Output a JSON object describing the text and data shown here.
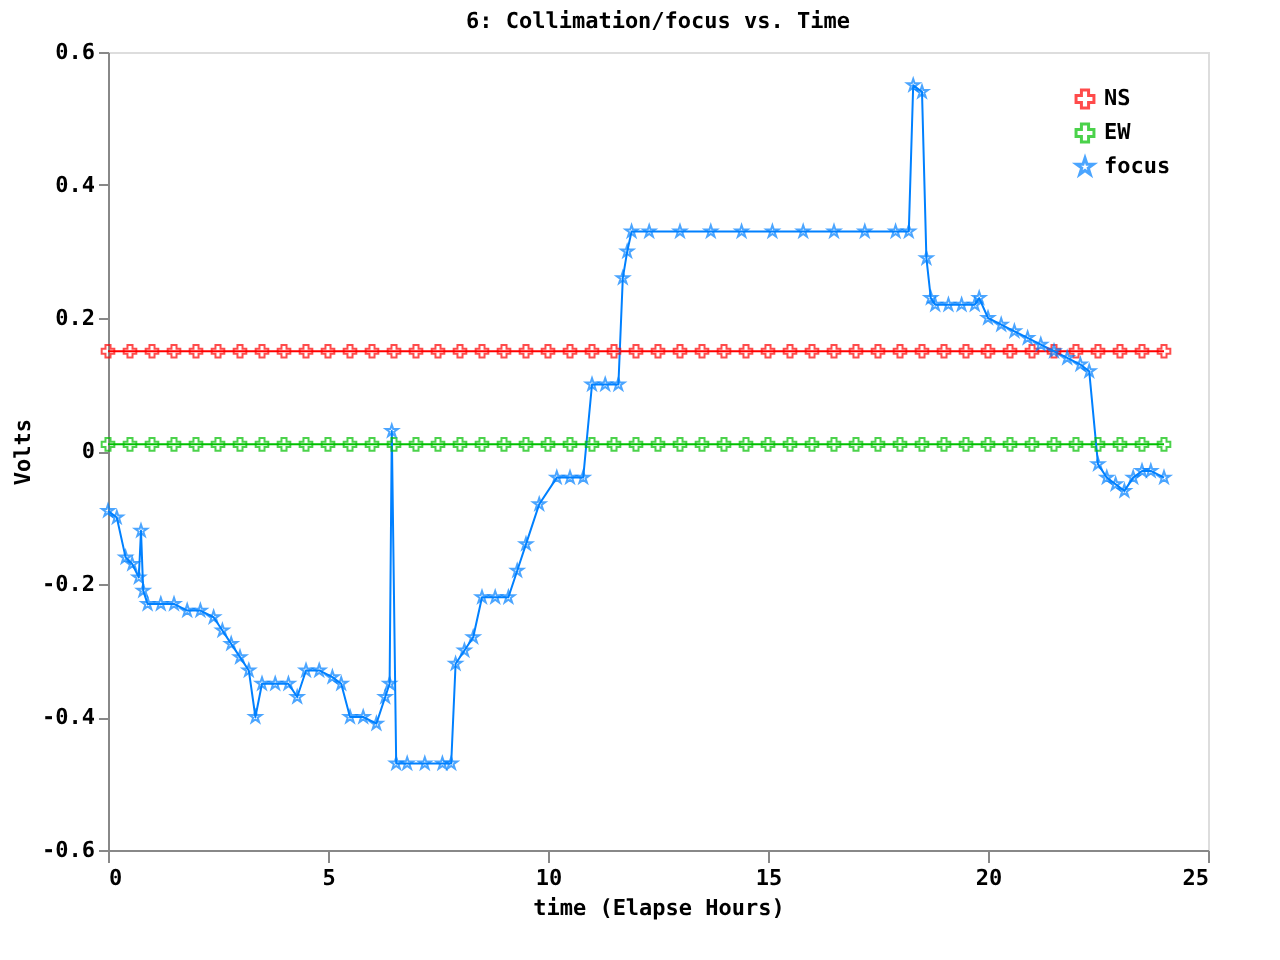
{
  "chart_data": {
    "type": "line",
    "title": "6: Collimation/focus vs. Time",
    "xlabel": "time (Elapse Hours)",
    "ylabel": "Volts",
    "xlim": [
      0,
      25
    ],
    "xticks": [
      0,
      5,
      10,
      15,
      20,
      25
    ],
    "ylim": [
      -0.6,
      0.6
    ],
    "yticks": [
      -0.6,
      -0.4,
      -0.2,
      0,
      0.2,
      0.4,
      0.6
    ],
    "grid": false,
    "legend": "top right",
    "series": [
      {
        "name": "NS",
        "color": "#ff0000",
        "marker": "cross",
        "x": [
          0,
          0.5,
          1,
          1.5,
          2,
          2.5,
          3,
          3.5,
          4,
          4.5,
          5,
          5.5,
          6,
          6.5,
          7,
          7.5,
          8,
          8.5,
          9,
          9.5,
          10,
          10.5,
          11,
          11.5,
          12,
          12.5,
          13,
          13.5,
          14,
          14.5,
          15,
          15.5,
          16,
          16.5,
          17,
          17.5,
          18,
          18.5,
          19,
          19.5,
          20,
          20.5,
          21,
          21.5,
          22,
          22.5,
          23,
          23.5,
          24
        ],
        "values": [
          0.15,
          0.15,
          0.15,
          0.15,
          0.15,
          0.15,
          0.15,
          0.15,
          0.15,
          0.15,
          0.15,
          0.15,
          0.15,
          0.15,
          0.15,
          0.15,
          0.15,
          0.15,
          0.15,
          0.15,
          0.15,
          0.15,
          0.15,
          0.15,
          0.15,
          0.15,
          0.15,
          0.15,
          0.15,
          0.15,
          0.15,
          0.15,
          0.15,
          0.15,
          0.15,
          0.15,
          0.15,
          0.15,
          0.15,
          0.15,
          0.15,
          0.15,
          0.15,
          0.15,
          0.15,
          0.15,
          0.15,
          0.15,
          0.15
        ]
      },
      {
        "name": "EW",
        "color": "#00c000",
        "marker": "cross",
        "x": [
          0,
          0.5,
          1,
          1.5,
          2,
          2.5,
          3,
          3.5,
          4,
          4.5,
          5,
          5.5,
          6,
          6.5,
          7,
          7.5,
          8,
          8.5,
          9,
          9.5,
          10,
          10.5,
          11,
          11.5,
          12,
          12.5,
          13,
          13.5,
          14,
          14.5,
          15,
          15.5,
          16,
          16.5,
          17,
          17.5,
          18,
          18.5,
          19,
          19.5,
          20,
          20.5,
          21,
          21.5,
          22,
          22.5,
          23,
          23.5,
          24
        ],
        "values": [
          0.01,
          0.01,
          0.01,
          0.01,
          0.01,
          0.01,
          0.01,
          0.01,
          0.01,
          0.01,
          0.01,
          0.01,
          0.01,
          0.01,
          0.01,
          0.01,
          0.01,
          0.01,
          0.01,
          0.01,
          0.01,
          0.01,
          0.01,
          0.01,
          0.01,
          0.01,
          0.01,
          0.01,
          0.01,
          0.01,
          0.01,
          0.01,
          0.01,
          0.01,
          0.01,
          0.01,
          0.01,
          0.01,
          0.01,
          0.01,
          0.01,
          0.01,
          0.01,
          0.01,
          0.01,
          0.01,
          0.01,
          0.01,
          0.01
        ]
      },
      {
        "name": "focus",
        "color": "#0080ff",
        "marker": "star",
        "x": [
          0,
          0.2,
          0.4,
          0.55,
          0.7,
          0.75,
          0.8,
          0.9,
          1.2,
          1.5,
          1.8,
          2.1,
          2.4,
          2.6,
          2.8,
          3.0,
          3.2,
          3.35,
          3.5,
          3.8,
          4.1,
          4.3,
          4.5,
          4.8,
          5.1,
          5.3,
          5.5,
          5.8,
          6.1,
          6.3,
          6.4,
          6.45,
          6.55,
          6.8,
          7.2,
          7.6,
          7.8,
          7.9,
          8.1,
          8.3,
          8.5,
          8.8,
          9.1,
          9.3,
          9.5,
          9.8,
          10.2,
          10.5,
          10.8,
          11.0,
          11.3,
          11.6,
          11.7,
          11.8,
          11.9,
          12.3,
          13,
          13.7,
          14.4,
          15.1,
          15.8,
          16.5,
          17.2,
          17.9,
          18.2,
          18.3,
          18.5,
          18.6,
          18.7,
          18.8,
          19.1,
          19.4,
          19.7,
          19.8,
          20.0,
          20.3,
          20.6,
          20.9,
          21.2,
          21.5,
          21.8,
          22.1,
          22.3,
          22.5,
          22.7,
          22.9,
          23.1,
          23.3,
          23.5,
          23.7,
          24
        ],
        "values": [
          -0.09,
          -0.1,
          -0.16,
          -0.17,
          -0.19,
          -0.12,
          -0.21,
          -0.23,
          -0.23,
          -0.23,
          -0.24,
          -0.24,
          -0.25,
          -0.27,
          -0.29,
          -0.31,
          -0.33,
          -0.4,
          -0.35,
          -0.35,
          -0.35,
          -0.37,
          -0.33,
          -0.33,
          -0.34,
          -0.35,
          -0.4,
          -0.4,
          -0.41,
          -0.37,
          -0.35,
          0.03,
          -0.47,
          -0.47,
          -0.47,
          -0.47,
          -0.47,
          -0.32,
          -0.3,
          -0.28,
          -0.22,
          -0.22,
          -0.22,
          -0.18,
          -0.14,
          -0.08,
          -0.04,
          -0.04,
          -0.04,
          0.1,
          0.1,
          0.1,
          0.26,
          0.3,
          0.33,
          0.33,
          0.33,
          0.33,
          0.33,
          0.33,
          0.33,
          0.33,
          0.33,
          0.33,
          0.33,
          0.55,
          0.54,
          0.29,
          0.23,
          0.22,
          0.22,
          0.22,
          0.22,
          0.23,
          0.2,
          0.19,
          0.18,
          0.17,
          0.16,
          0.15,
          0.14,
          0.13,
          0.12,
          -0.02,
          -0.04,
          -0.05,
          -0.06,
          -0.04,
          -0.03,
          -0.03,
          -0.04
        ]
      }
    ]
  }
}
